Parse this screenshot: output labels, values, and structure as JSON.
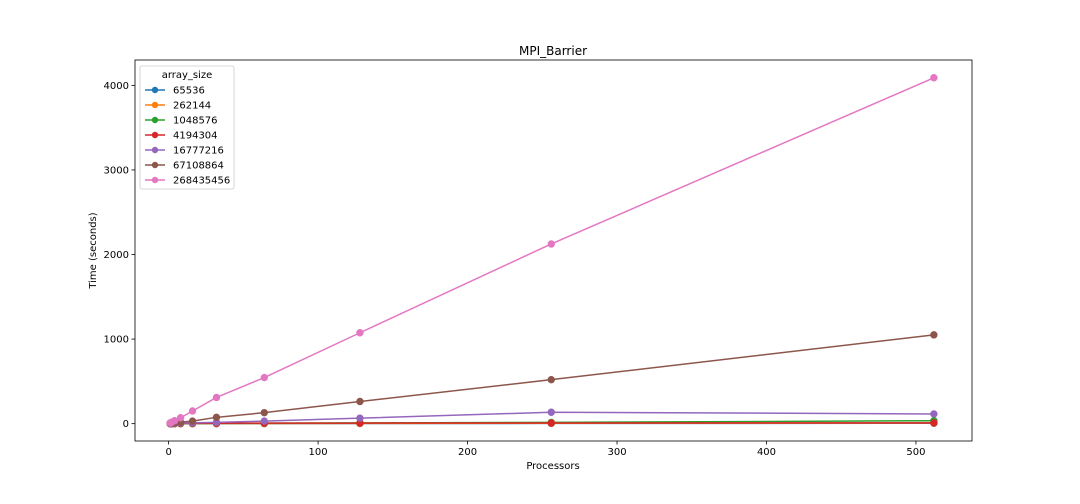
{
  "chart_data": {
    "type": "line",
    "title": "MPI_Barrier",
    "xlabel": "Processors",
    "ylabel": "Time (seconds)",
    "xlim": [
      -22.5,
      537.5
    ],
    "ylim": [
      -205,
      4300
    ],
    "xticks": [
      0,
      100,
      200,
      300,
      400,
      500
    ],
    "yticks": [
      0,
      1000,
      2000,
      3000,
      4000
    ],
    "grid": false,
    "legend": {
      "title": "array_size",
      "placement": "top-left"
    },
    "x": [
      1,
      2,
      4,
      8,
      16,
      32,
      64,
      128,
      256,
      512
    ],
    "series": [
      {
        "name": "65536",
        "color": "#1f77b4",
        "values": [
          0.1,
          0.1,
          0.1,
          0.2,
          0.3,
          0.5,
          1,
          1.5,
          3,
          5
        ]
      },
      {
        "name": "262144",
        "color": "#ff7f0e",
        "values": [
          0.2,
          0.2,
          0.3,
          0.5,
          0.8,
          1.2,
          2,
          3,
          5,
          8
        ]
      },
      {
        "name": "1048576",
        "color": "#2ca02c",
        "values": [
          0.5,
          0.6,
          0.9,
          1.5,
          2.5,
          4,
          6,
          9,
          15,
          35
        ]
      },
      {
        "name": "4194304",
        "color": "#d62728",
        "values": [
          1,
          1.2,
          1.8,
          2.5,
          4,
          5,
          6,
          7,
          8,
          10
        ]
      },
      {
        "name": "16777216",
        "color": "#9467bd",
        "values": [
          3,
          4,
          5,
          8,
          10,
          15,
          30,
          65,
          135,
          115
        ]
      },
      {
        "name": "67108864",
        "color": "#8c564b",
        "values": [
          6,
          8,
          12,
          18,
          30,
          75,
          130,
          262,
          520,
          1050
        ]
      },
      {
        "name": "268435456",
        "color": "#e377c2",
        "values": [
          8,
          17,
          35,
          70,
          150,
          310,
          545,
          1075,
          2125,
          4090
        ]
      }
    ]
  }
}
